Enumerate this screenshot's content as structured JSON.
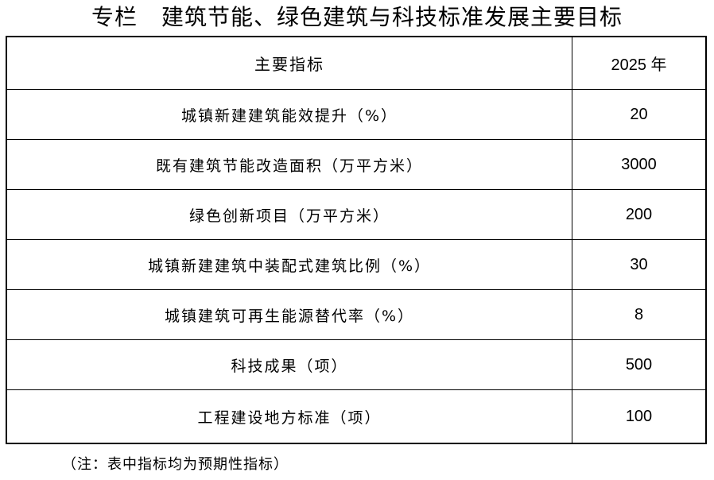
{
  "title": {
    "prefix": "专栏",
    "text": "建筑节能、绿色建筑与科技标准发展主要目标"
  },
  "table": {
    "headers": [
      "主要指标",
      "2025 年"
    ],
    "rows": [
      {
        "indicator": "城镇新建建筑能效提升（%）",
        "value": "20"
      },
      {
        "indicator": "既有建筑节能改造面积（万平方米）",
        "value": "3000"
      },
      {
        "indicator": "绿色创新项目（万平方米）",
        "value": "200"
      },
      {
        "indicator": "城镇新建建筑中装配式建筑比例（%）",
        "value": "30"
      },
      {
        "indicator": "城镇建筑可再生能源替代率（%）",
        "value": "8"
      },
      {
        "indicator": "科技成果（项）",
        "value": "500"
      },
      {
        "indicator": "工程建设地方标准（项）",
        "value": "100"
      }
    ]
  },
  "note": "（注：表中指标均为预期性指标）"
}
